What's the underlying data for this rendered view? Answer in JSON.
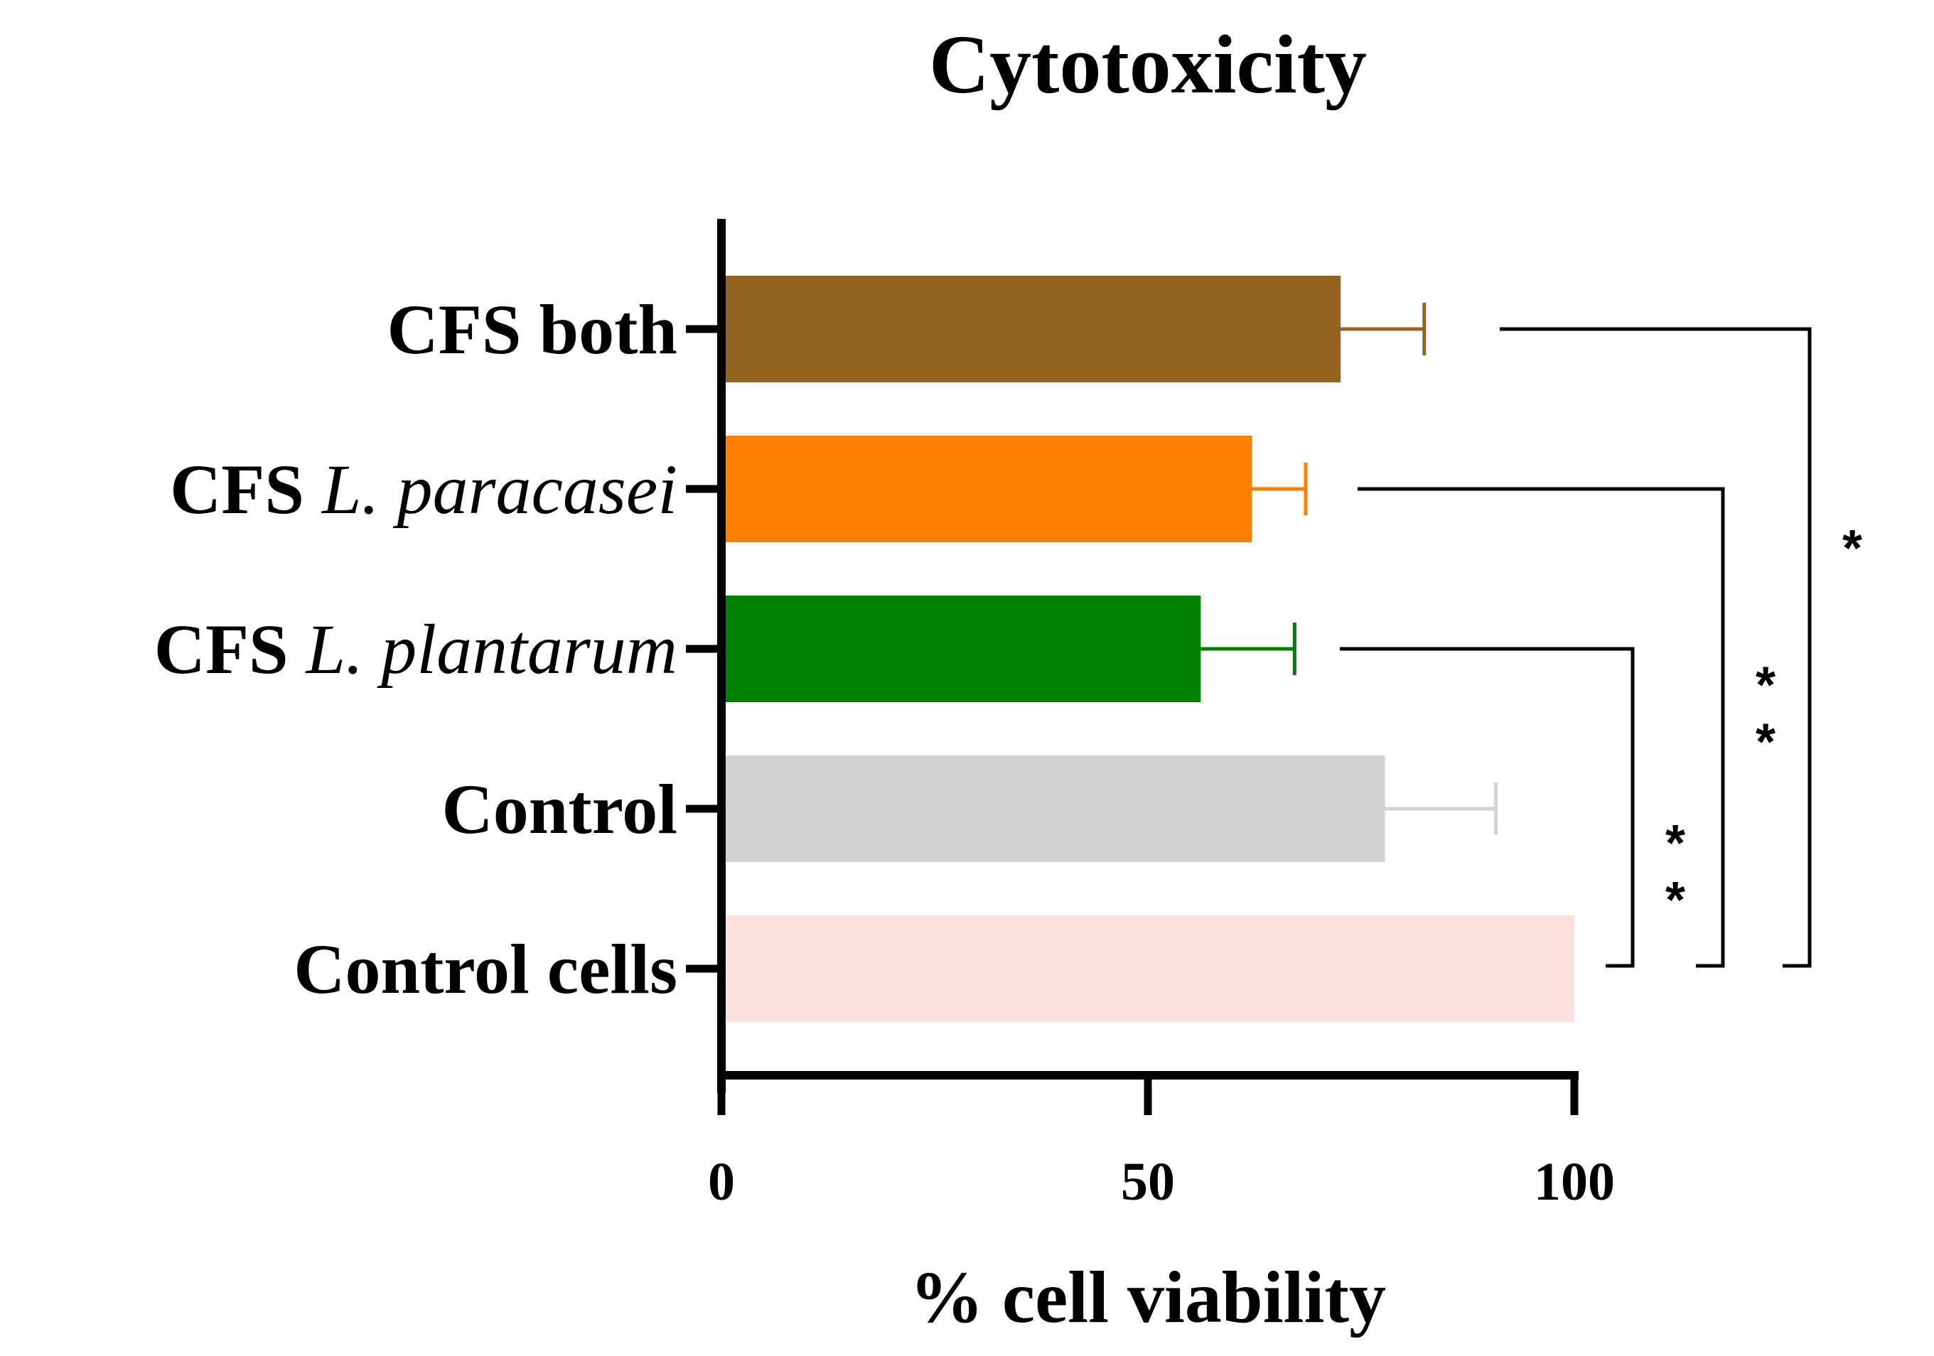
{
  "chart_data": {
    "type": "bar",
    "orientation": "horizontal",
    "title": "Cytotoxicity",
    "xlabel": "% cell viability",
    "ylabel": "",
    "xlim": [
      0,
      100
    ],
    "xticks": [
      0,
      50,
      100
    ],
    "xtick_labels": [
      "0",
      "50",
      "100"
    ],
    "grid": false,
    "legend": "none",
    "categories": [
      {
        "bold": "CFS both",
        "italic": ""
      },
      {
        "bold": "CFS ",
        "italic": "L. paracasei"
      },
      {
        "bold": "CFS ",
        "italic": "L. plantarum"
      },
      {
        "bold": "Control",
        "italic": ""
      },
      {
        "bold": "Control cells",
        "italic": ""
      }
    ],
    "values": [
      72.6,
      62.2,
      56.2,
      77.8,
      100
    ],
    "errors": [
      9.8,
      6.3,
      11.0,
      13.0,
      0
    ],
    "colors": [
      "#93631F",
      "#FF8000",
      "#007F00",
      "#D3D3D3",
      "#FCE0E0"
    ],
    "significance": [
      {
        "from": "CFS L. plantarum",
        "to": "Control cells",
        "label": "**"
      },
      {
        "from": "CFS L. paracasei",
        "to": "Control cells",
        "label": "**"
      },
      {
        "from": "CFS both",
        "to": "Control cells",
        "label": "*"
      }
    ]
  }
}
